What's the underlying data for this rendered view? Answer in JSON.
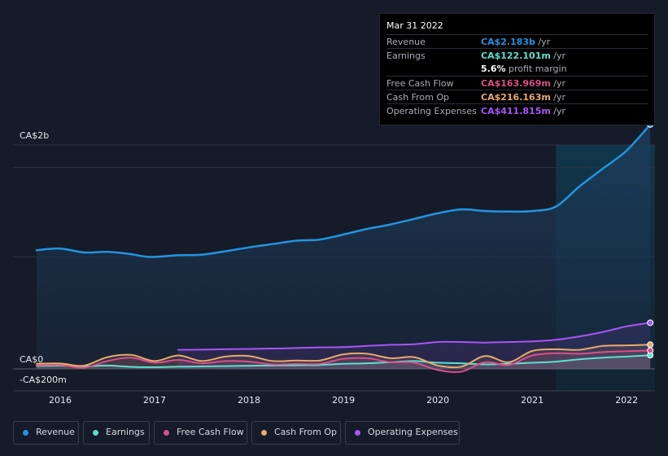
{
  "tooltip": {
    "date": "Mar 31 2022",
    "rows": [
      {
        "label": "Revenue",
        "value": "CA$2.183b",
        "unit": " /yr",
        "color": "#2394df"
      },
      {
        "label": "Earnings",
        "value": "CA$122.101m",
        "unit": " /yr",
        "color": "#5ce1d1"
      },
      {
        "label": "",
        "value": "5.6%",
        "unit": " profit margin",
        "color": "#ffffff"
      },
      {
        "label": "Free Cash Flow",
        "value": "CA$163.969m",
        "unit": " /yr",
        "color": "#d9508a"
      },
      {
        "label": "Cash From Op",
        "value": "CA$216.163m",
        "unit": " /yr",
        "color": "#e9a96c"
      },
      {
        "label": "Operating Expenses",
        "value": "CA$411.815m",
        "unit": " /yr",
        "color": "#a855f7"
      }
    ]
  },
  "legend": [
    {
      "label": "Revenue",
      "color": "#2394df"
    },
    {
      "label": "Earnings",
      "color": "#5ce1d1"
    },
    {
      "label": "Free Cash Flow",
      "color": "#d9508a"
    },
    {
      "label": "Cash From Op",
      "color": "#e9a96c"
    },
    {
      "label": "Operating Expenses",
      "color": "#a855f7"
    }
  ],
  "chart_data": {
    "type": "area",
    "title": "",
    "xlabel": "",
    "ylabel": "",
    "y_tick_labels": {
      "top": "CA$2b",
      "zero": "CA$0",
      "bottom": "-CA$200m"
    },
    "x_tick_labels": [
      "2016",
      "2017",
      "2018",
      "2019",
      "2020",
      "2021",
      "2022"
    ],
    "xlim": [
      2015.5,
      2022.3
    ],
    "ylim": [
      -200,
      2200
    ],
    "unit": "CA$m",
    "grid": true,
    "highlight_from": 2021.25,
    "series": [
      {
        "name": "Revenue",
        "color": "#2394df",
        "x": [
          2015.75,
          2016.0,
          2016.25,
          2016.5,
          2016.75,
          2016.95,
          2017.25,
          2017.5,
          2017.75,
          2018.0,
          2018.25,
          2018.5,
          2018.75,
          2019.0,
          2019.25,
          2019.5,
          2019.75,
          2020.0,
          2020.25,
          2020.5,
          2020.75,
          2021.0,
          2021.25,
          2021.5,
          2021.75,
          2022.0,
          2022.25
        ],
        "y": [
          1060,
          1075,
          1040,
          1045,
          1025,
          1000,
          1015,
          1020,
          1050,
          1085,
          1115,
          1145,
          1155,
          1200,
          1250,
          1290,
          1340,
          1390,
          1425,
          1410,
          1405,
          1410,
          1450,
          1630,
          1790,
          1950,
          2183
        ]
      },
      {
        "name": "Earnings",
        "color": "#5ce1d1",
        "x": [
          2015.75,
          2016.0,
          2016.25,
          2016.5,
          2016.75,
          2017.0,
          2017.25,
          2017.5,
          2017.75,
          2018.0,
          2018.25,
          2018.5,
          2018.75,
          2019.0,
          2019.25,
          2019.5,
          2019.75,
          2020.0,
          2020.25,
          2020.5,
          2020.75,
          2021.0,
          2021.25,
          2021.5,
          2021.75,
          2022.0,
          2022.25
        ],
        "y": [
          25,
          28,
          22,
          30,
          18,
          15,
          20,
          22,
          25,
          28,
          30,
          32,
          35,
          45,
          50,
          60,
          70,
          55,
          50,
          40,
          45,
          55,
          65,
          85,
          100,
          110,
          122
        ]
      },
      {
        "name": "Free Cash Flow",
        "color": "#d9508a",
        "x": [
          2015.75,
          2016.0,
          2016.25,
          2016.5,
          2016.75,
          2017.0,
          2017.25,
          2017.5,
          2017.75,
          2018.0,
          2018.25,
          2018.5,
          2018.75,
          2019.0,
          2019.25,
          2019.5,
          2019.75,
          2020.0,
          2020.25,
          2020.5,
          2020.75,
          2021.0,
          2021.25,
          2021.5,
          2021.75,
          2022.0,
          2022.25
        ],
        "y": [
          30,
          35,
          10,
          70,
          100,
          55,
          80,
          50,
          70,
          65,
          40,
          45,
          45,
          90,
          95,
          60,
          55,
          -10,
          -25,
          60,
          35,
          120,
          140,
          135,
          150,
          158,
          164
        ]
      },
      {
        "name": "Cash From Op",
        "color": "#e9a96c",
        "x": [
          2015.75,
          2016.0,
          2016.25,
          2016.5,
          2016.75,
          2017.0,
          2017.25,
          2017.5,
          2017.75,
          2018.0,
          2018.25,
          2018.5,
          2018.75,
          2019.0,
          2019.25,
          2019.5,
          2019.75,
          2020.0,
          2020.25,
          2020.5,
          2020.75,
          2021.0,
          2021.25,
          2021.5,
          2021.75,
          2022.0,
          2022.25
        ],
        "y": [
          45,
          48,
          28,
          105,
          125,
          70,
          120,
          70,
          110,
          115,
          70,
          75,
          75,
          130,
          135,
          95,
          105,
          30,
          20,
          115,
          60,
          160,
          175,
          170,
          205,
          210,
          216
        ]
      },
      {
        "name": "Operating Expenses",
        "color": "#a855f7",
        "x": [
          2017.25,
          2017.5,
          2017.75,
          2018.0,
          2018.25,
          2018.5,
          2018.75,
          2019.0,
          2019.25,
          2019.5,
          2019.75,
          2020.0,
          2020.25,
          2020.5,
          2020.75,
          2021.0,
          2021.25,
          2021.5,
          2021.75,
          2022.0,
          2022.25
        ],
        "y": [
          170,
          172,
          175,
          178,
          182,
          186,
          192,
          195,
          205,
          215,
          220,
          240,
          240,
          235,
          240,
          245,
          260,
          290,
          330,
          380,
          412
        ]
      }
    ]
  }
}
